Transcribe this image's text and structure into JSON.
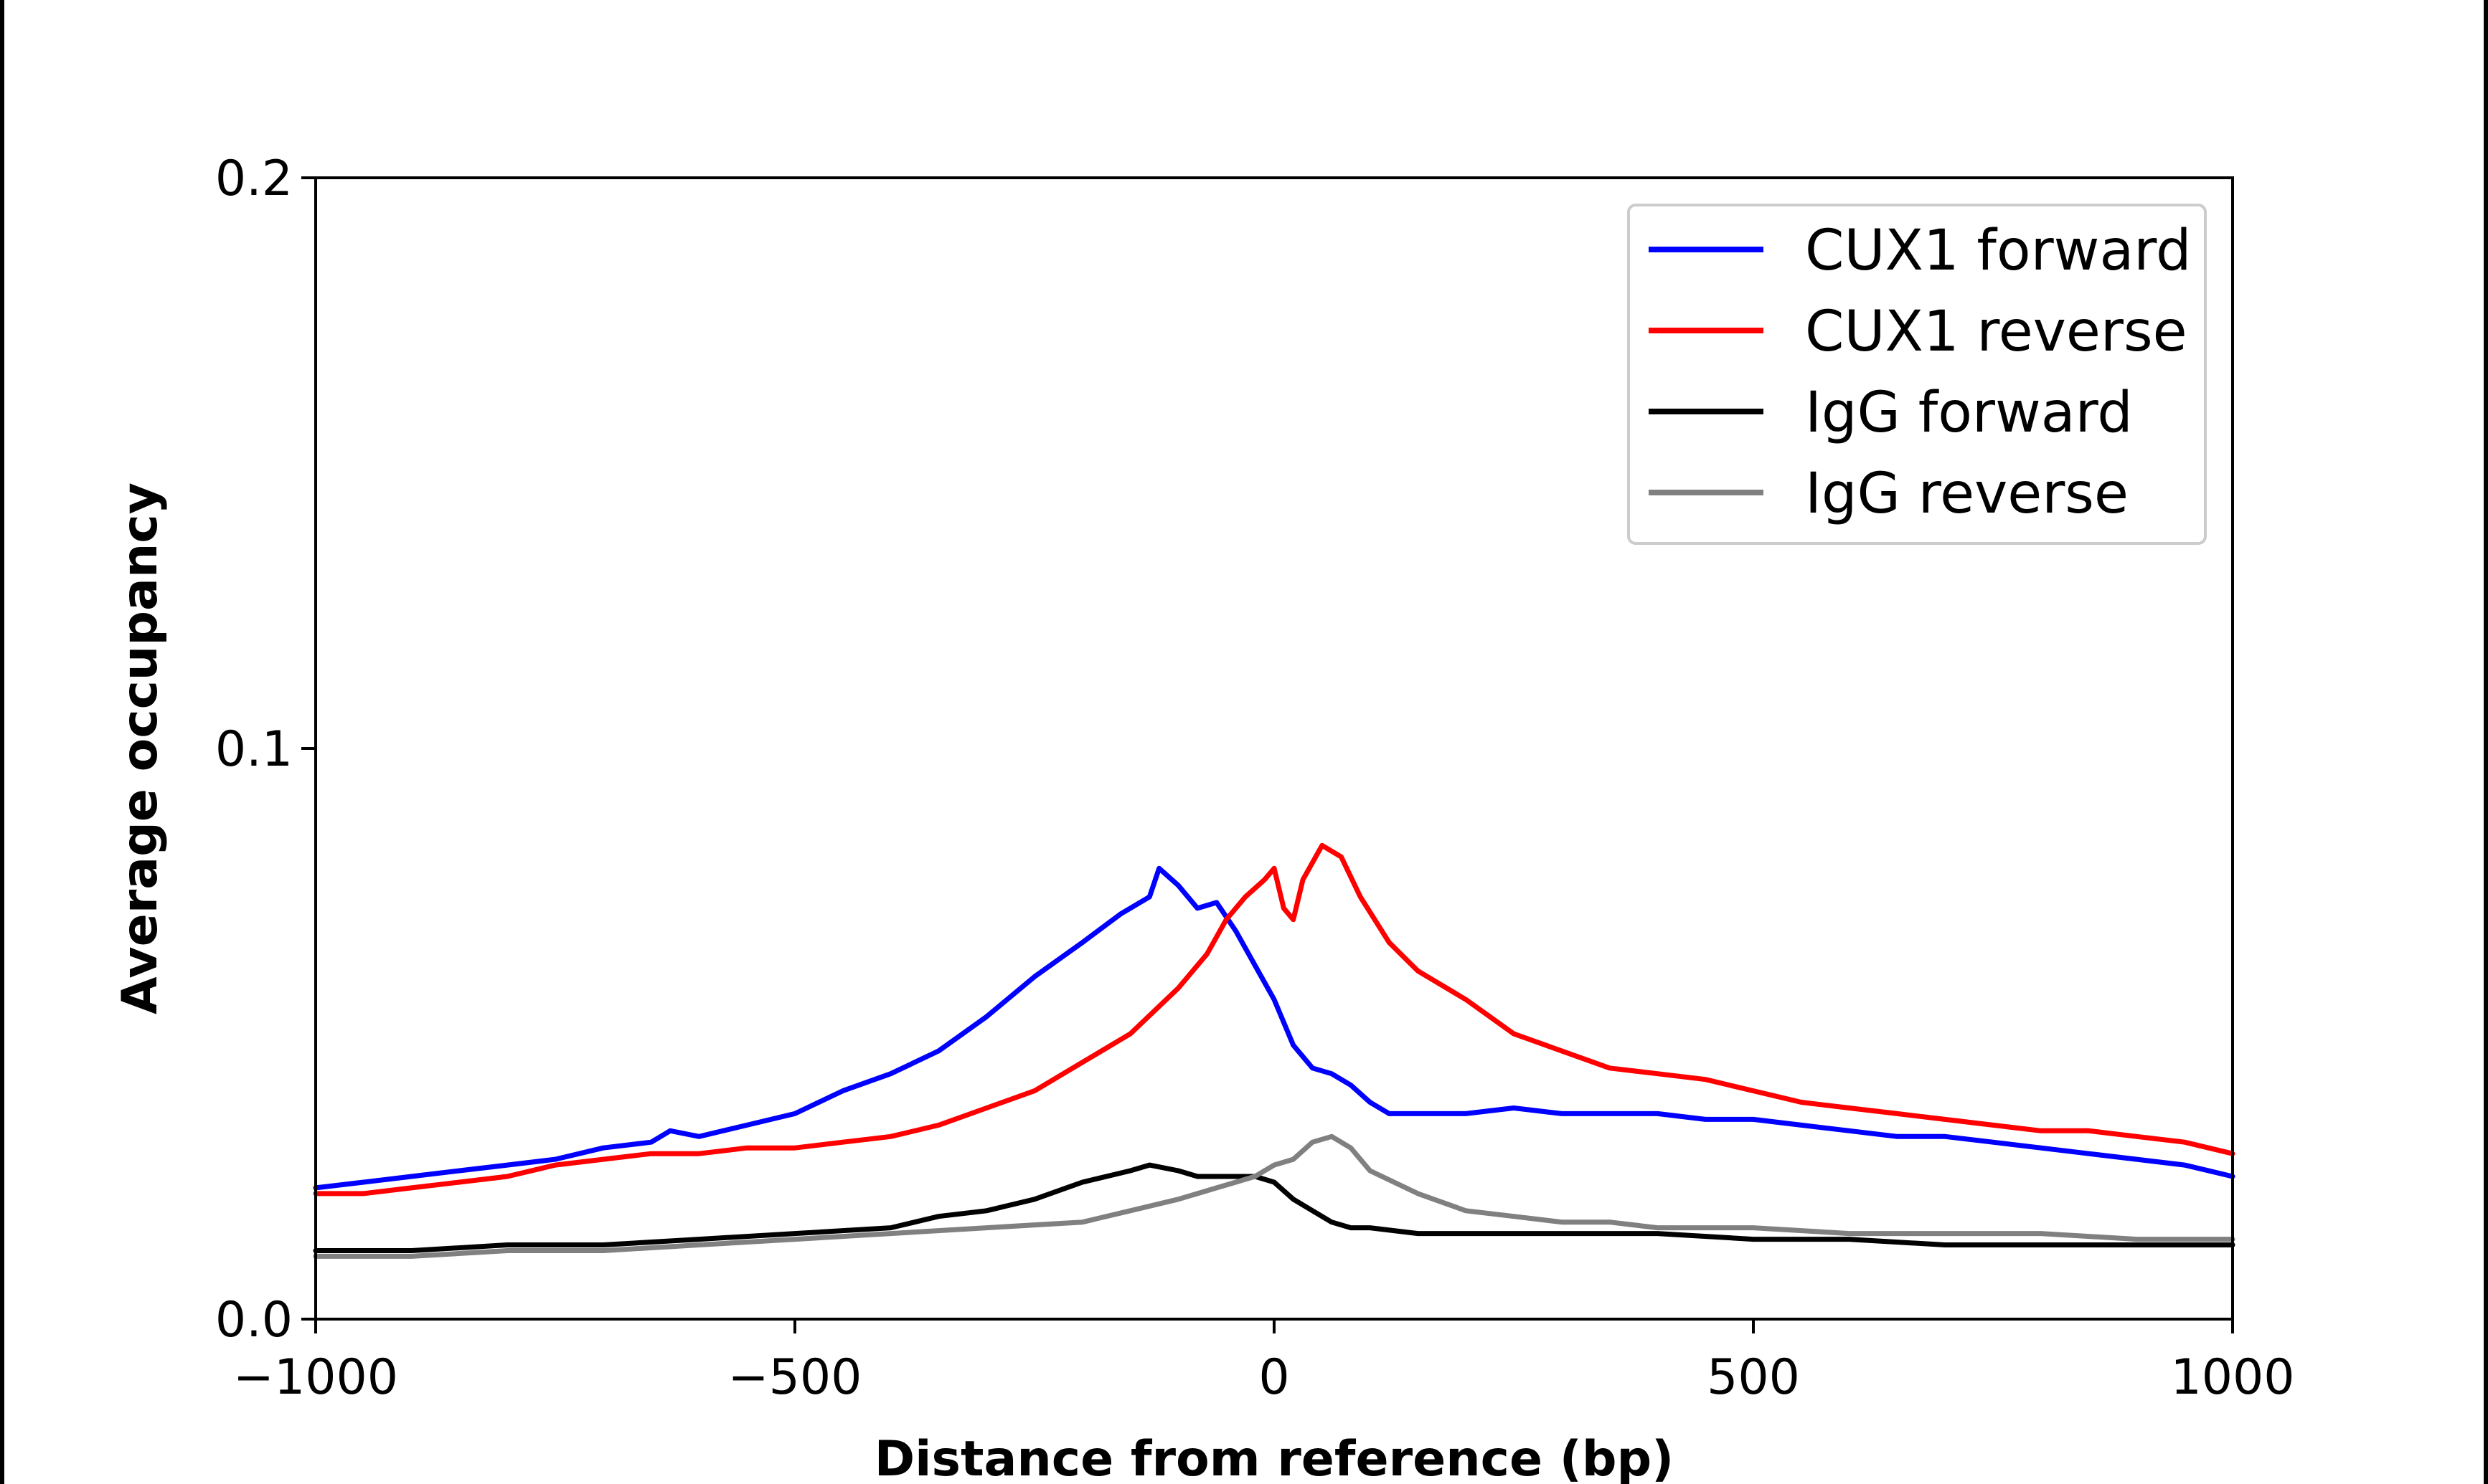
{
  "chart_data": {
    "type": "line",
    "title": "",
    "xlabel": "Distance from reference (bp)",
    "ylabel": "Average occupancy",
    "xlim": [
      -1000,
      1000
    ],
    "ylim": [
      0,
      0.2
    ],
    "xticks": [
      -1000,
      -500,
      0,
      500,
      1000
    ],
    "xtick_labels": [
      "−1000",
      "−500",
      "0",
      "500",
      "1000"
    ],
    "yticks": [
      0,
      0.1,
      0.2
    ],
    "ytick_labels": [
      "0.0",
      "0.1",
      "0.2"
    ],
    "grid": false,
    "legend_position": "top-right",
    "series": [
      {
        "name": "CUX1 forward",
        "color": "#0000ff",
        "x": [
          -1000,
          -950,
          -900,
          -850,
          -800,
          -750,
          -700,
          -650,
          -630,
          -600,
          -550,
          -500,
          -450,
          -400,
          -350,
          -300,
          -250,
          -200,
          -160,
          -130,
          -120,
          -100,
          -80,
          -60,
          -40,
          -20,
          0,
          20,
          40,
          60,
          80,
          100,
          120,
          150,
          200,
          250,
          300,
          350,
          400,
          450,
          500,
          550,
          600,
          650,
          700,
          750,
          800,
          850,
          900,
          950,
          1000
        ],
        "values": [
          0.023,
          0.024,
          0.025,
          0.026,
          0.027,
          0.028,
          0.03,
          0.031,
          0.033,
          0.032,
          0.034,
          0.036,
          0.04,
          0.043,
          0.047,
          0.053,
          0.06,
          0.066,
          0.071,
          0.074,
          0.079,
          0.076,
          0.072,
          0.073,
          0.068,
          0.062,
          0.056,
          0.048,
          0.044,
          0.043,
          0.041,
          0.038,
          0.036,
          0.036,
          0.036,
          0.037,
          0.036,
          0.036,
          0.036,
          0.035,
          0.035,
          0.034,
          0.033,
          0.032,
          0.032,
          0.031,
          0.03,
          0.029,
          0.028,
          0.027,
          0.025
        ]
      },
      {
        "name": "CUX1 reverse",
        "color": "#ff0000",
        "x": [
          -1000,
          -950,
          -900,
          -850,
          -800,
          -750,
          -700,
          -650,
          -600,
          -550,
          -500,
          -450,
          -400,
          -350,
          -300,
          -250,
          -200,
          -150,
          -100,
          -70,
          -50,
          -30,
          -10,
          0,
          10,
          20,
          30,
          50,
          70,
          90,
          120,
          150,
          200,
          250,
          300,
          350,
          400,
          450,
          500,
          550,
          600,
          650,
          700,
          750,
          800,
          850,
          900,
          950,
          1000
        ],
        "values": [
          0.022,
          0.022,
          0.023,
          0.024,
          0.025,
          0.027,
          0.028,
          0.029,
          0.029,
          0.03,
          0.03,
          0.031,
          0.032,
          0.034,
          0.037,
          0.04,
          0.045,
          0.05,
          0.058,
          0.064,
          0.07,
          0.074,
          0.077,
          0.079,
          0.072,
          0.07,
          0.077,
          0.083,
          0.081,
          0.074,
          0.066,
          0.061,
          0.056,
          0.05,
          0.047,
          0.044,
          0.043,
          0.042,
          0.04,
          0.038,
          0.037,
          0.036,
          0.035,
          0.034,
          0.033,
          0.033,
          0.032,
          0.031,
          0.029
        ]
      },
      {
        "name": "IgG forward",
        "color": "#000000",
        "x": [
          -1000,
          -900,
          -800,
          -700,
          -600,
          -500,
          -400,
          -350,
          -300,
          -250,
          -200,
          -150,
          -130,
          -100,
          -80,
          -60,
          -40,
          -20,
          0,
          20,
          40,
          60,
          80,
          100,
          150,
          200,
          250,
          300,
          400,
          500,
          600,
          700,
          800,
          900,
          1000
        ],
        "values": [
          0.012,
          0.012,
          0.013,
          0.013,
          0.014,
          0.015,
          0.016,
          0.018,
          0.019,
          0.021,
          0.024,
          0.026,
          0.027,
          0.026,
          0.025,
          0.025,
          0.025,
          0.025,
          0.024,
          0.021,
          0.019,
          0.017,
          0.016,
          0.016,
          0.015,
          0.015,
          0.015,
          0.015,
          0.015,
          0.014,
          0.014,
          0.013,
          0.013,
          0.013,
          0.013
        ]
      },
      {
        "name": "IgG reverse",
        "color": "#808080",
        "x": [
          -1000,
          -900,
          -800,
          -700,
          -600,
          -500,
          -400,
          -300,
          -200,
          -150,
          -100,
          -80,
          -60,
          -40,
          -20,
          0,
          20,
          40,
          60,
          80,
          100,
          150,
          200,
          250,
          300,
          350,
          400,
          500,
          600,
          700,
          800,
          900,
          1000
        ],
        "values": [
          0.011,
          0.011,
          0.012,
          0.012,
          0.013,
          0.014,
          0.015,
          0.016,
          0.017,
          0.019,
          0.021,
          0.022,
          0.023,
          0.024,
          0.025,
          0.027,
          0.028,
          0.031,
          0.032,
          0.03,
          0.026,
          0.022,
          0.019,
          0.018,
          0.017,
          0.017,
          0.016,
          0.016,
          0.015,
          0.015,
          0.015,
          0.014,
          0.014
        ]
      }
    ]
  }
}
